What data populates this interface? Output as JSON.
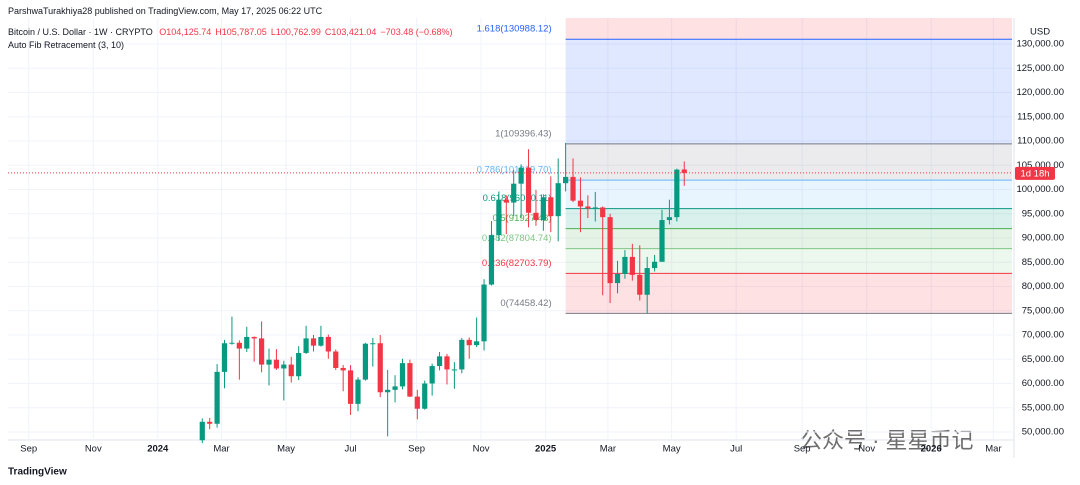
{
  "header": {
    "published": "ParshwaTurakhiya28 published on TradingView.com, May 17, 2025 06:22 UTC",
    "symbol": "Bitcoin / U.S. Dollar · 1W · CRYPTO",
    "ohlc": [
      "O104,125.74",
      "H105,787.05",
      "L100,762.99",
      "C103,421.04",
      "−703.48 (−0.68%)"
    ],
    "indicator": "Auto Fib Retracement (3, 10)",
    "currency": "USD",
    "countdown": "1d 18h",
    "brand": "TradingView",
    "watermark": "公众号 · 星星币记"
  },
  "chart_data": {
    "type": "candlestick",
    "x": [
      6,
      7,
      8,
      9,
      10,
      11,
      12,
      13,
      14,
      15,
      16,
      17,
      18,
      19,
      20,
      21,
      22,
      23,
      24,
      25,
      26,
      27,
      28,
      29,
      30,
      31,
      32,
      33,
      34,
      35,
      36,
      37,
      38,
      39,
      40,
      41,
      42,
      43,
      44,
      45,
      46,
      47,
      48,
      49,
      50,
      51,
      52,
      53,
      54,
      55,
      56,
      57,
      58,
      59,
      60,
      61,
      62,
      63,
      64,
      65,
      66,
      67,
      68,
      69,
      70,
      71
    ],
    "open": [
      48300,
      52100,
      51700,
      62400,
      68300,
      68400,
      67200,
      69600,
      69300,
      63900,
      64900,
      63100,
      63900,
      61500,
      66300,
      69300,
      67800,
      69600,
      66600,
      63200,
      62700,
      55800,
      60800,
      68200,
      68300,
      58200,
      58700,
      59400,
      64200,
      57300,
      54800,
      60000,
      63600,
      65600,
      62900,
      62900,
      69000,
      67900,
      68700,
      80400,
      90600,
      97900,
      97300,
      101200,
      104500,
      95200,
      93700,
      98400,
      94500,
      101300,
      102600,
      97700,
      96500,
      96100,
      96300,
      94300,
      80700,
      82600,
      86100,
      82400,
      78300,
      83800,
      85100,
      93700,
      94300,
      104125.74
    ],
    "high": [
      52800,
      52900,
      64000,
      69000,
      73800,
      68900,
      71700,
      69700,
      72800,
      67200,
      67100,
      64700,
      65500,
      67700,
      71900,
      70000,
      71900,
      70100,
      67000,
      63800,
      63800,
      61300,
      68400,
      69400,
      70000,
      62800,
      61700,
      65100,
      64900,
      58700,
      60600,
      64100,
      66500,
      66100,
      64400,
      69400,
      69500,
      73600,
      81500,
      93500,
      99600,
      98800,
      104000,
      105200,
      108300,
      99900,
      99000,
      102700,
      106400,
      109600,
      106400,
      102500,
      98800,
      99500,
      96500,
      95000,
      85300,
      87500,
      88800,
      88500,
      86100,
      86500,
      95800,
      97900,
      104300,
      105787.05
    ],
    "low": [
      47700,
      50600,
      50900,
      59000,
      68000,
      60800,
      66500,
      64500,
      62300,
      59600,
      62800,
      56500,
      60200,
      60700,
      66100,
      66600,
      67600,
      65100,
      62800,
      58400,
      53500,
      54300,
      60600,
      63500,
      57200,
      49100,
      56100,
      58800,
      57200,
      52600,
      54600,
      57500,
      62700,
      59800,
      58900,
      62100,
      65100,
      67500,
      66800,
      80200,
      89400,
      90800,
      94500,
      94200,
      92200,
      92500,
      91500,
      91200,
      89300,
      99600,
      97400,
      91200,
      94100,
      93400,
      78200,
      76600,
      78600,
      81600,
      81200,
      77100,
      74400,
      83100,
      85100,
      92800,
      93400,
      100762.99
    ],
    "close": [
      52100,
      51700,
      62400,
      68300,
      68400,
      67200,
      69600,
      69300,
      63900,
      64900,
      63100,
      63900,
      61500,
      66300,
      69300,
      67800,
      69600,
      66600,
      63200,
      62700,
      55800,
      60800,
      68200,
      68300,
      58200,
      58700,
      59400,
      64200,
      57300,
      54800,
      60000,
      63600,
      65600,
      62900,
      62900,
      69000,
      67900,
      68700,
      80400,
      90600,
      97900,
      97300,
      101200,
      104500,
      95200,
      93700,
      98400,
      94500,
      101300,
      102600,
      97700,
      96500,
      96100,
      96300,
      94300,
      80700,
      82600,
      86100,
      82400,
      78300,
      83800,
      85100,
      93700,
      94300,
      104100,
      103421.04
    ],
    "up_color": "#089981",
    "down_color": "#f23645",
    "xlim": [
      -20.2,
      115.2
    ],
    "xticks": [
      {
        "value": -17.4,
        "label": "Sep"
      },
      {
        "value": -8.7,
        "label": "Nov"
      },
      {
        "value": 0,
        "label": "2024"
      },
      {
        "value": 8.6,
        "label": "Mar"
      },
      {
        "value": 17.3,
        "label": "May"
      },
      {
        "value": 26,
        "label": "Jul"
      },
      {
        "value": 34.9,
        "label": "Sep"
      },
      {
        "value": 43.6,
        "label": "Nov"
      },
      {
        "value": 52.3,
        "label": "2025"
      },
      {
        "value": 60.7,
        "label": "Mar"
      },
      {
        "value": 69.3,
        "label": "May"
      },
      {
        "value": 78,
        "label": "Jul"
      },
      {
        "value": 86.9,
        "label": "Sep"
      },
      {
        "value": 95.6,
        "label": "Nov"
      },
      {
        "value": 104.3,
        "label": "2026"
      },
      {
        "value": 112.7,
        "label": "Mar"
      }
    ],
    "ylim": [
      48350,
      135360
    ],
    "yticks": [
      {
        "value": 50000,
        "label": "50,000.00"
      },
      {
        "value": 55000,
        "label": "55,000.00"
      },
      {
        "value": 60000,
        "label": "60,000.00"
      },
      {
        "value": 65000,
        "label": "65,000.00"
      },
      {
        "value": 70000,
        "label": "70,000.00"
      },
      {
        "value": 75000,
        "label": "75,000.00"
      },
      {
        "value": 80000,
        "label": "80,000.00"
      },
      {
        "value": 85000,
        "label": "85,000.00"
      },
      {
        "value": 90000,
        "label": "90,000.00"
      },
      {
        "value": 95000,
        "label": "95,000.00"
      },
      {
        "value": 100000,
        "label": "100,000.00"
      },
      {
        "value": 105000,
        "label": "105,000.00"
      },
      {
        "value": 110000,
        "label": "110,000.00"
      },
      {
        "value": 115000,
        "label": "115,000.00"
      },
      {
        "value": 120000,
        "label": "120,000.00"
      },
      {
        "value": 125000,
        "label": "125,000.00"
      },
      {
        "value": 130000,
        "label": "130,000.00"
      }
    ],
    "grid": true,
    "fib_start": 55,
    "fib_levels": [
      {
        "label": "1.618(130988.12)",
        "value": 130988.12,
        "color": "#2962ff"
      },
      {
        "label": "1(109396.43)",
        "value": 109396.43,
        "color": "#787b86"
      },
      {
        "label": "0.786(101919.70)",
        "value": 101919.7,
        "color": "#64b5f6"
      },
      {
        "label": "0.618(96050.11)",
        "value": 96050.11,
        "color": "#089981"
      },
      {
        "label": "0.5(91927.43)",
        "value": 91927.43,
        "color": "#4caf50"
      },
      {
        "label": "0.382(87804.74)",
        "value": 87804.74,
        "color": "#81c784"
      },
      {
        "label": "0.236(82703.79)",
        "value": 82703.79,
        "color": "#f23645"
      },
      {
        "label": "0(74458.42)",
        "value": 74458.42,
        "color": "#787b86"
      }
    ]
  }
}
